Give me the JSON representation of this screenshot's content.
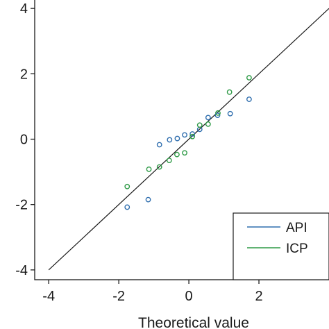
{
  "chart_data": {
    "type": "scatter",
    "title": "",
    "xlabel": "Theoretical value",
    "ylabel": "",
    "xlim": [
      -4.4,
      4.0
    ],
    "ylim": [
      -4.3,
      4.3
    ],
    "xticks": [
      -4,
      -2,
      0,
      2
    ],
    "yticks": [
      4,
      2,
      0,
      -2,
      -4
    ],
    "grid": false,
    "legend_position": "bottom-right",
    "reference_line": {
      "x": [
        -4,
        4
      ],
      "y": [
        -4,
        4
      ],
      "color": "#1a1a1a"
    },
    "series": [
      {
        "name": "API",
        "color": "#2f6eae",
        "points": [
          {
            "x": -1.76,
            "y": -2.08
          },
          {
            "x": -1.16,
            "y": -1.85
          },
          {
            "x": -0.84,
            "y": -0.17
          },
          {
            "x": -0.55,
            "y": -0.02
          },
          {
            "x": -0.33,
            "y": 0.02
          },
          {
            "x": -0.12,
            "y": 0.13
          },
          {
            "x": 0.1,
            "y": 0.16
          },
          {
            "x": 0.31,
            "y": 0.3
          },
          {
            "x": 0.55,
            "y": 0.66
          },
          {
            "x": 0.82,
            "y": 0.73
          },
          {
            "x": 1.18,
            "y": 0.78
          },
          {
            "x": 1.72,
            "y": 1.22
          }
        ]
      },
      {
        "name": "ICP",
        "color": "#2e9a46",
        "points": [
          {
            "x": -1.76,
            "y": -1.45
          },
          {
            "x": -1.14,
            "y": -0.92
          },
          {
            "x": -0.84,
            "y": -0.85
          },
          {
            "x": -0.56,
            "y": -0.65
          },
          {
            "x": -0.34,
            "y": -0.47
          },
          {
            "x": -0.12,
            "y": -0.42
          },
          {
            "x": 0.1,
            "y": 0.08
          },
          {
            "x": 0.31,
            "y": 0.43
          },
          {
            "x": 0.55,
            "y": 0.46
          },
          {
            "x": 0.83,
            "y": 0.8
          },
          {
            "x": 1.16,
            "y": 1.44
          },
          {
            "x": 1.72,
            "y": 1.88
          }
        ]
      }
    ]
  }
}
